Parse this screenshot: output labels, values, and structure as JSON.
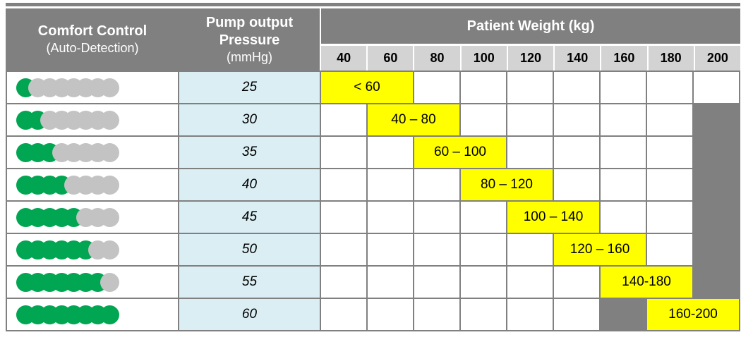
{
  "header": {
    "comfort": {
      "title": "Comfort Control",
      "subtitle": "(Auto-Detection)"
    },
    "pressure": {
      "line1": "Pump output",
      "line2": "Pressure",
      "unit": "(mmHg)"
    },
    "weight": {
      "title": "Patient Weight (kg)",
      "columns": [
        "40",
        "60",
        "80",
        "100",
        "120",
        "140",
        "160",
        "180",
        "200"
      ]
    }
  },
  "rows": [
    {
      "comfort_level": 1,
      "total_dots": 8,
      "pressure": "25",
      "weight_range": "< 60",
      "highlight_columns": [
        "40",
        "60"
      ],
      "grid_column": "3 / span 2"
    },
    {
      "comfort_level": 2,
      "total_dots": 8,
      "pressure": "30",
      "weight_range": "40 – 80",
      "highlight_columns": [
        "60",
        "80"
      ],
      "grid_column": "4 / span 2"
    },
    {
      "comfort_level": 3,
      "total_dots": 8,
      "pressure": "35",
      "weight_range": "60 – 100",
      "highlight_columns": [
        "80",
        "100"
      ],
      "grid_column": "5 / span 2"
    },
    {
      "comfort_level": 4,
      "total_dots": 8,
      "pressure": "40",
      "weight_range": "80 – 120",
      "highlight_columns": [
        "100",
        "120"
      ],
      "grid_column": "6 / span 2"
    },
    {
      "comfort_level": 5,
      "total_dots": 8,
      "pressure": "45",
      "weight_range": "100 – 140",
      "highlight_columns": [
        "120",
        "140"
      ],
      "grid_column": "7 / span 2"
    },
    {
      "comfort_level": 6,
      "total_dots": 8,
      "pressure": "50",
      "weight_range": "120 – 160",
      "highlight_columns": [
        "140",
        "160"
      ],
      "grid_column": "8 / span 2"
    },
    {
      "comfort_level": 7,
      "total_dots": 8,
      "pressure": "55",
      "weight_range": "140-180",
      "highlight_columns": [
        "160",
        "180"
      ],
      "grid_column": "9 / span 2"
    },
    {
      "comfort_level": 8,
      "total_dots": 8,
      "pressure": "60",
      "weight_range": "160-200",
      "highlight_columns": [
        "180",
        "200"
      ],
      "grid_column": "10 / span 2"
    }
  ],
  "colors": {
    "header_bg": "#808080",
    "header_text": "#ffffff",
    "subheader_bg": "#d3d3d3",
    "grid_border": "#808080",
    "pressure_col_bg": "#daeef3",
    "highlight_bg": "#ffff00",
    "dot_active": "#00a651",
    "dot_inactive": "#c3c3c3",
    "divider": "#818181"
  }
}
